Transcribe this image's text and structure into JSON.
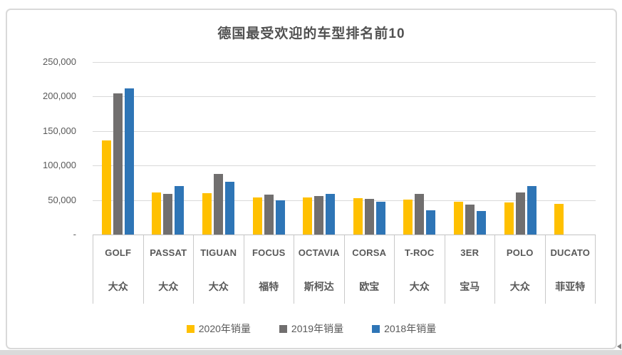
{
  "window": {
    "bottom_scrollbar_arrow": "left-triangle"
  },
  "chart_data": {
    "type": "bar",
    "title": "德国最受欢迎的车型排名前10",
    "categories": [
      "GOLF",
      "PASSAT",
      "TIGUAN",
      "FOCUS",
      "OCTAVIA",
      "CORSA",
      "T-ROC",
      "3ER",
      "POLO",
      "DUCATO"
    ],
    "category_brands": [
      "大众",
      "大众",
      "大众",
      "福特",
      "斯柯达",
      "欧宝",
      "大众",
      "宝马",
      "大众",
      "菲亚特"
    ],
    "series": [
      {
        "name": "2020年销量",
        "color": "#FFC000",
        "values": [
          136000,
          61000,
          60000,
          54000,
          53500,
          53000,
          51000,
          47500,
          47000,
          44000
        ]
      },
      {
        "name": "2019年销量",
        "color": "#716F6F",
        "values": [
          204500,
          59000,
          88000,
          58000,
          55500,
          52000,
          59000,
          43500,
          61000,
          0
        ]
      },
      {
        "name": "2018年销量",
        "color": "#2E75B6",
        "values": [
          211500,
          70000,
          76000,
          50000,
          59000,
          47500,
          35500,
          34000,
          70000,
          0
        ]
      }
    ],
    "xlabel": "",
    "ylabel": "",
    "ylim": [
      0,
      250000
    ],
    "ytick_interval": 50000,
    "ytick_labels_top_to_bottom": [
      "250,000",
      "200,000",
      "150,000",
      "100,000",
      "50,000",
      "-"
    ],
    "grid": true,
    "legend_position": "bottom",
    "colors": {
      "title_text": "#515151",
      "axis_text": "#595959",
      "gridline": "#d9d9d9",
      "axis_line": "#c3c3c3",
      "frame_border": "#d9d9d9",
      "background": "#ffffff"
    }
  }
}
